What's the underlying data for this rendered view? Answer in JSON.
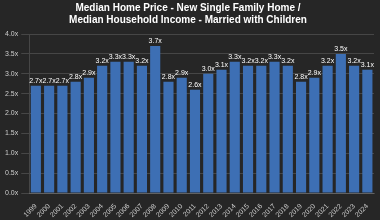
{
  "chart_data": {
    "type": "bar",
    "title": [
      "Median Home Price - New Single Family Home /",
      "Median Household Income - Married with Children"
    ],
    "categories": [
      "1999",
      "2000",
      "2001",
      "2002",
      "2003",
      "2004",
      "2005",
      "2006",
      "2007",
      "2008",
      "2009",
      "2010",
      "2011",
      "2012",
      "2013",
      "2014",
      "2015",
      "2016",
      "2017",
      "2018",
      "2019",
      "2020",
      "2021",
      "2022",
      "2023",
      "2024"
    ],
    "values": [
      2.7,
      2.7,
      2.7,
      2.8,
      2.9,
      3.2,
      3.3,
      3.3,
      3.2,
      3.7,
      2.8,
      2.9,
      2.6,
      3.0,
      3.1,
      3.3,
      3.2,
      3.2,
      3.3,
      3.2,
      2.8,
      2.9,
      3.2,
      3.5,
      3.2,
      3.1
    ],
    "value_labels": [
      "2.7x",
      "2.7x",
      "2.7x",
      "2.8x",
      "2.9x",
      "3.2x",
      "3.3x",
      "3.3x",
      "3.2x",
      "3.7x",
      "2.8x",
      "2.9x",
      "2.6x",
      "3.0x",
      "3.1x",
      "3.3x",
      "3.2x",
      "3.2x",
      "3.3x",
      "3.2x",
      "2.8x",
      "2.9x",
      "3.2x",
      "3.5x",
      "3.2x",
      "3.1x"
    ],
    "color": "#3d6fb4",
    "ylim": [
      0,
      4
    ],
    "yticks": [
      {
        "value": 0,
        "label": "0.0x"
      },
      {
        "value": 0.5,
        "label": "0.5x"
      },
      {
        "value": 1,
        "label": "1.0x"
      },
      {
        "value": 1.5,
        "label": "1.5x"
      },
      {
        "value": 2,
        "label": "2.0x"
      },
      {
        "value": 2.5,
        "label": "2.5x"
      },
      {
        "value": 3,
        "label": "3.0x"
      },
      {
        "value": 3.5,
        "label": "3.5x"
      },
      {
        "value": 4,
        "label": "4.0x"
      }
    ],
    "grid": true,
    "data_labels": true
  }
}
